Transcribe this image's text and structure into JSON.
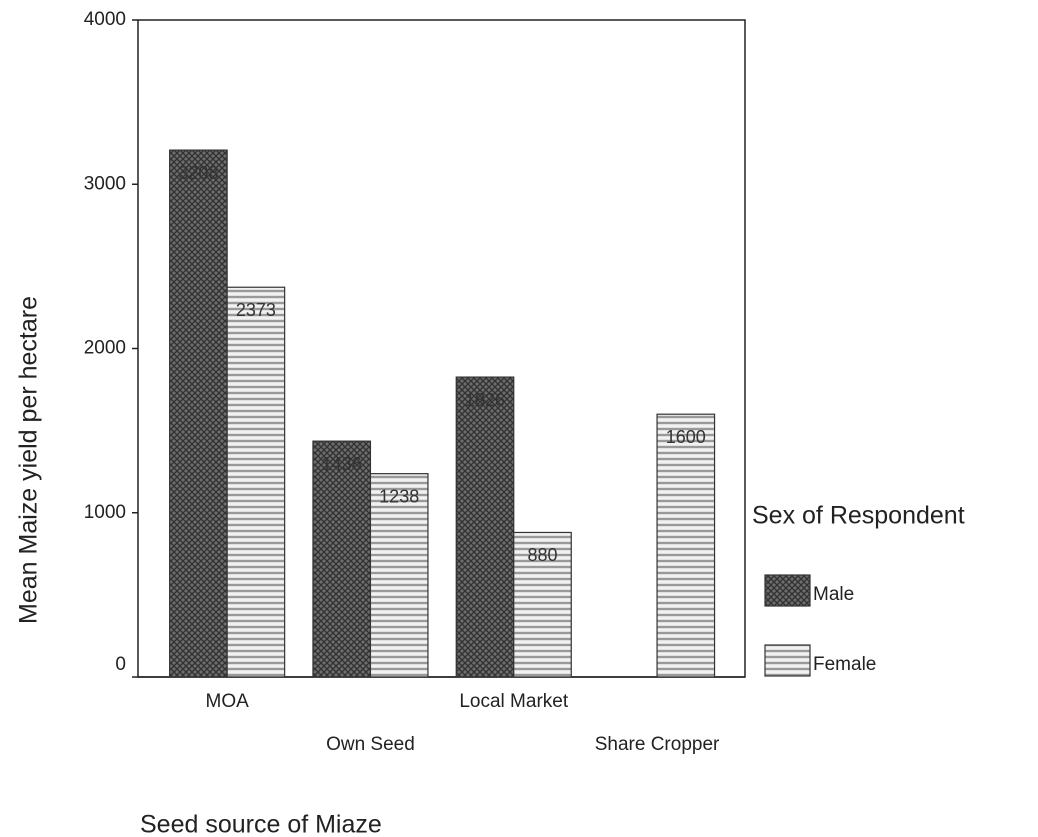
{
  "chart_data": {
    "type": "bar",
    "x_label": "Seed source of Miaze",
    "y_label": "Mean Maize yield per hectare",
    "categories": [
      "MOA",
      "Own Seed",
      "Local Market",
      "Share Cropper"
    ],
    "legend_title": "Sex of Respondent",
    "series": [
      {
        "name": "Male",
        "color": "#6e6e6e",
        "values": [
          3208,
          1436,
          1826,
          null
        ]
      },
      {
        "name": "Female",
        "color": "#bdbdbd",
        "values": [
          2373,
          1238,
          880,
          1600
        ]
      }
    ],
    "ylim": [
      0,
      4000
    ],
    "yticks": [
      0,
      1000,
      2000,
      3000,
      4000
    ],
    "legend": "right"
  }
}
